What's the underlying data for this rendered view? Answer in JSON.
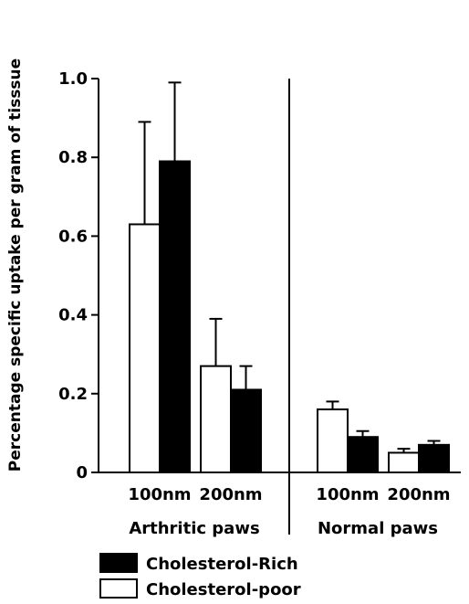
{
  "chart_data": {
    "type": "bar",
    "ylabel": "Percentage specific uptake per gram of tisssue",
    "ylim": [
      0,
      1.0
    ],
    "yticks": [
      "0",
      "0.2",
      "0.4",
      "0.6",
      "0.8",
      "1.0"
    ],
    "groups": [
      {
        "label": "Arthritic paws",
        "categories": [
          "100nm",
          "200nm"
        ]
      },
      {
        "label": "Normal paws",
        "categories": [
          "100nm",
          "200nm"
        ]
      }
    ],
    "series": [
      {
        "name": "Cholesterol-poor",
        "color": "#ffffff",
        "values": [
          0.63,
          0.27,
          0.16,
          0.05
        ],
        "errors": [
          0.26,
          0.12,
          0.02,
          0.01
        ]
      },
      {
        "name": "Cholesterol-Rich",
        "color": "#000000",
        "values": [
          0.79,
          0.21,
          0.09,
          0.07
        ],
        "errors": [
          0.2,
          0.06,
          0.015,
          0.01
        ]
      }
    ],
    "legend": [
      {
        "name": "Cholesterol-Rich",
        "color": "#000000"
      },
      {
        "name": "Cholesterol-poor",
        "color": "#ffffff"
      }
    ],
    "legend_position": "bottom-left",
    "grid": false
  }
}
